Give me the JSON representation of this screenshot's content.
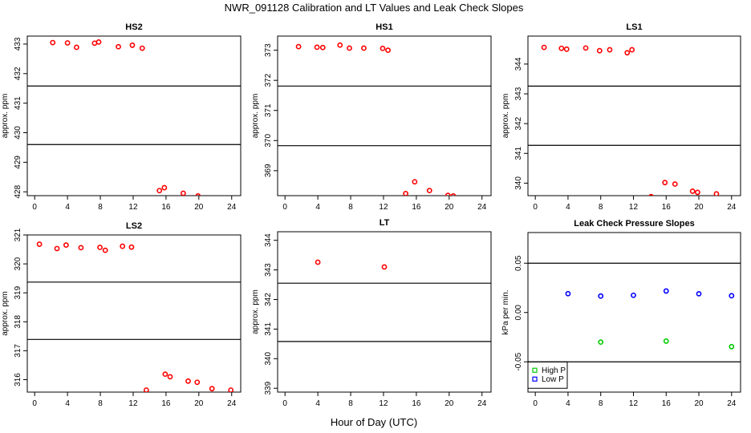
{
  "title": "NWR_091128  Calibration and LT Values and Leak Check Slopes",
  "xlabel": "Hour of Day (UTC)",
  "chart_data": [
    {
      "name": "HS2",
      "type": "scatter",
      "title": "HS2",
      "ylabel": "approx. ppm",
      "xlim": [
        -0.9,
        25.1
      ],
      "ylim": [
        427.87,
        433.27
      ],
      "xticks": [
        0,
        4,
        8,
        12,
        16,
        20,
        24
      ],
      "yticks": [
        428,
        429,
        430,
        431,
        432,
        433
      ],
      "hlines": [
        431.58,
        429.6
      ],
      "series": [
        {
          "name": "values",
          "color": "#ff0000",
          "x": [
            2.2,
            4.0,
            5.1,
            7.3,
            7.8,
            10.2,
            11.9,
            13.1,
            15.2,
            15.8,
            18.1,
            19.9
          ],
          "y": [
            433.05,
            433.04,
            432.89,
            433.03,
            433.07,
            432.91,
            432.96,
            432.86,
            428.04,
            428.14,
            427.95,
            427.86
          ]
        }
      ]
    },
    {
      "name": "HS1",
      "type": "scatter",
      "title": "HS1",
      "ylabel": "approx. ppm",
      "xlim": [
        -0.9,
        25.1
      ],
      "ylim": [
        368.17,
        373.47
      ],
      "xticks": [
        0,
        4,
        8,
        12,
        16,
        20,
        24
      ],
      "yticks": [
        369,
        370,
        371,
        372,
        373
      ],
      "hlines": [
        371.81,
        369.83
      ],
      "series": [
        {
          "name": "values",
          "color": "#ff0000",
          "x": [
            1.65,
            3.9,
            4.6,
            6.7,
            7.85,
            9.6,
            11.9,
            12.55,
            14.7,
            15.8,
            17.6,
            19.85,
            20.5
          ],
          "y": [
            373.12,
            373.1,
            373.09,
            373.17,
            373.07,
            373.07,
            373.06,
            373.0,
            368.24,
            368.63,
            368.34,
            368.18,
            368.16
          ]
        }
      ]
    },
    {
      "name": "LS1",
      "type": "scatter",
      "title": "LS1",
      "ylabel": "approx. ppm",
      "xlim": [
        -0.9,
        25.1
      ],
      "ylim": [
        339.58,
        344.94
      ],
      "xticks": [
        0,
        4,
        8,
        12,
        16,
        20,
        24
      ],
      "yticks": [
        340,
        341,
        342,
        343,
        344
      ],
      "hlines": [
        343.26,
        341.27
      ],
      "series": [
        {
          "name": "values",
          "color": "#ff0000",
          "x": [
            1.07,
            3.2,
            3.83,
            6.17,
            7.86,
            9.1,
            11.24,
            11.82,
            14.16,
            15.85,
            17.08,
            19.23,
            19.84,
            22.15
          ],
          "y": [
            344.56,
            344.53,
            344.5,
            344.54,
            344.45,
            344.48,
            344.38,
            344.48,
            339.55,
            340.02,
            339.97,
            339.73,
            339.69,
            339.64
          ]
        }
      ]
    },
    {
      "name": "LS2",
      "type": "scatter",
      "title": "LS2",
      "ylabel": "approx. ppm",
      "xlim": [
        -0.9,
        25.1
      ],
      "ylim": [
        315.57,
        321.0
      ],
      "xticks": [
        0,
        4,
        8,
        12,
        16,
        20,
        24
      ],
      "yticks": [
        316,
        317,
        318,
        319,
        320,
        321
      ],
      "hlines": [
        319.37,
        317.39
      ],
      "series": [
        {
          "name": "values",
          "color": "#ff0000",
          "x": [
            0.58,
            2.72,
            3.83,
            5.64,
            7.95,
            8.6,
            10.7,
            11.8,
            13.6,
            15.9,
            16.5,
            18.7,
            19.8,
            21.6,
            23.9
          ],
          "y": [
            320.68,
            320.53,
            320.65,
            320.56,
            320.57,
            320.47,
            320.61,
            320.58,
            315.64,
            316.19,
            316.1,
            315.95,
            315.91,
            315.69,
            315.64
          ]
        }
      ]
    },
    {
      "name": "LT",
      "type": "scatter",
      "title": "LT",
      "ylabel": "approx. ppm",
      "xlim": [
        -0.9,
        25.1
      ],
      "ylim": [
        338.87,
        344.29
      ],
      "xticks": [
        0,
        4,
        8,
        12,
        16,
        20,
        24
      ],
      "yticks": [
        339,
        340,
        341,
        342,
        343,
        344
      ],
      "hlines": [
        342.55,
        340.58
      ],
      "series": [
        {
          "name": "values",
          "color": "#ff0000",
          "x": [
            4.0,
            12.1
          ],
          "y": [
            343.26,
            343.1
          ]
        }
      ]
    },
    {
      "name": "Leak",
      "type": "scatter",
      "title": "Leak Check Pressure Slopes",
      "ylabel": "kPa per min.",
      "xlim": [
        -0.9,
        25.1
      ],
      "ylim": [
        -0.0807,
        0.0811
      ],
      "xticks": [
        0,
        4,
        8,
        12,
        16,
        20,
        24
      ],
      "yticks": [
        "-0.05",
        "0.00",
        "0.05"
      ],
      "hlines": [
        0.05,
        -0.05
      ],
      "series": [
        {
          "name": "High P",
          "color": "#00cc00",
          "x": [
            8,
            16,
            24
          ],
          "y": [
            -0.03,
            -0.029,
            -0.0346
          ]
        },
        {
          "name": "Low P",
          "color": "#0000ff",
          "x": [
            4,
            8,
            12,
            16,
            20,
            24
          ],
          "y": [
            0.0191,
            0.0167,
            0.0175,
            0.0218,
            0.019,
            0.017
          ]
        }
      ],
      "legend": {
        "placement": "bottom-left",
        "entries": [
          "High P",
          "Low P"
        ]
      }
    }
  ]
}
